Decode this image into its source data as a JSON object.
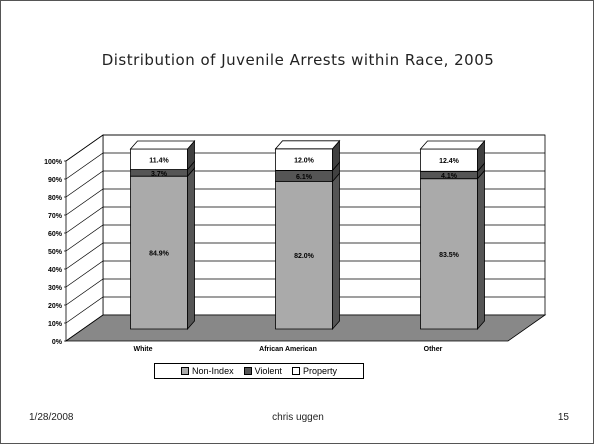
{
  "slide": {
    "title": "Distribution of Juvenile Arrests within Race, 2005",
    "footer_date": "1/28/2008",
    "footer_author": "chris uggen",
    "footer_page": "15"
  },
  "chart_data": {
    "type": "bar",
    "stacked": true,
    "three_d": true,
    "title": "Distribution of Juvenile Arrests within Race, 2005",
    "categories": [
      "White",
      "African American",
      "Other"
    ],
    "series": [
      {
        "name": "Non-Index",
        "values": [
          84.9,
          82.0,
          83.5
        ],
        "labels": [
          "84.9%",
          "82.0%",
          "83.5%"
        ],
        "color": "#aaaaaa"
      },
      {
        "name": "Violent",
        "values": [
          3.7,
          6.1,
          4.1
        ],
        "labels": [
          "3.7%",
          "6.1%",
          "4.1%"
        ],
        "color": "#555555"
      },
      {
        "name": "Property",
        "values": [
          11.4,
          12.0,
          12.4
        ],
        "labels": [
          "11.4%",
          "12.0%",
          "12.4%"
        ],
        "color": "#ffffff"
      }
    ],
    "y_ticks": [
      "0%",
      "10%",
      "20%",
      "30%",
      "40%",
      "50%",
      "60%",
      "70%",
      "80%",
      "90%",
      "100%"
    ],
    "ylim": [
      0,
      100
    ],
    "grid": true,
    "legend_position": "bottom"
  }
}
